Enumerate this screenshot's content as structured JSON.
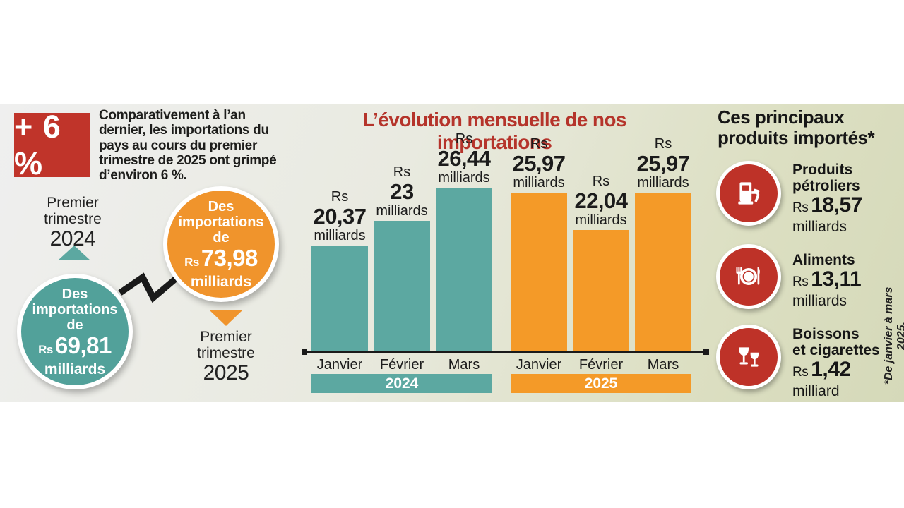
{
  "summary": {
    "badge": "+ 6 %",
    "text": "Comparativement à l’an dernier, les importations du pays au cours du premier trimestre de 2025 ont grimpé d’environ 6 %."
  },
  "q1_2024": {
    "line1": "Premier",
    "line2": "trimestre",
    "year": "2024",
    "bubble": {
      "l1": "Des",
      "l2": "importations",
      "l3": "de",
      "rs": "Rs",
      "value": "69,81",
      "unit": "milliards"
    }
  },
  "q1_2025": {
    "line1": "Premier",
    "line2": "trimestre",
    "year": "2025",
    "bubble": {
      "l1": "Des",
      "l2": "importations",
      "l3": "de",
      "rs": "Rs",
      "value": "73,98",
      "unit": "milliards"
    }
  },
  "chart_data": {
    "type": "bar",
    "title": "L’évolution mensuelle de nos importations",
    "value_prefix": "Rs",
    "categories": [
      "Janvier",
      "Février",
      "Mars"
    ],
    "series": [
      {
        "name": "2024",
        "color": "#5CA8A1",
        "values": [
          20.37,
          23,
          26.44
        ],
        "display": [
          "20,37",
          "23",
          "26,44"
        ],
        "unit": "milliards"
      },
      {
        "name": "2025",
        "color": "#F49A28",
        "values": [
          25.97,
          22.04,
          25.97
        ],
        "display": [
          "25,97",
          "22,04",
          "25,97"
        ],
        "unit": "milliards"
      }
    ]
  },
  "products": {
    "heading_line1": "Ces principaux",
    "heading_line2": "produits importés*",
    "items": [
      {
        "icon": "fuel-pump-icon",
        "name_line1": "Produits",
        "name_line2": "pétroliers",
        "rs": "Rs",
        "value": "18,57",
        "unit": "milliards"
      },
      {
        "icon": "dining-plate-icon",
        "name_line1": "Aliments",
        "name_line2": "",
        "rs": "Rs",
        "value": "13,11",
        "unit": "milliards"
      },
      {
        "icon": "wine-glasses-icon",
        "name_line1": "Boissons",
        "name_line2": "et cigarettes",
        "rs": "Rs",
        "value": "1,42",
        "unit": "milliard"
      }
    ],
    "footnote": "*De janvier à mars 2025."
  },
  "colors": {
    "teal": "#5CA8A1",
    "orange": "#F49A28",
    "red": "#BE3228",
    "title_red": "#B5342B",
    "text_dark": "#1d1d1b"
  }
}
